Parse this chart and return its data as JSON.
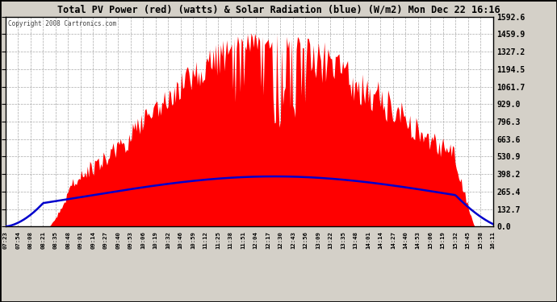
{
  "title": "Total PV Power (red) (watts) & Solar Radiation (blue) (W/m2) Mon Dec 22 16:16",
  "copyright": "Copyright 2008 Cartronics.com",
  "ymax": 1592.6,
  "yticks": [
    0.0,
    132.7,
    265.4,
    398.2,
    530.9,
    663.6,
    796.3,
    929.0,
    1061.7,
    1194.5,
    1327.2,
    1459.9,
    1592.6
  ],
  "ytick_labels": [
    "0.0",
    "132.7",
    "265.4",
    "398.2",
    "530.9",
    "663.6",
    "796.3",
    "929.0",
    "1061.7",
    "1194.5",
    "1327.2",
    "1459.9",
    "1592.6"
  ],
  "xtick_labels": [
    "07:23",
    "07:54",
    "08:08",
    "08:21",
    "08:35",
    "08:48",
    "09:01",
    "09:14",
    "09:27",
    "09:40",
    "09:53",
    "10:06",
    "10:19",
    "10:32",
    "10:46",
    "10:59",
    "11:12",
    "11:25",
    "11:38",
    "11:51",
    "12:04",
    "12:17",
    "12:30",
    "12:43",
    "12:56",
    "13:09",
    "13:22",
    "13:35",
    "13:48",
    "14:01",
    "14:14",
    "14:27",
    "14:40",
    "14:53",
    "15:06",
    "15:19",
    "15:32",
    "15:45",
    "15:58",
    "16:11"
  ],
  "plot_bg": "#ffffff",
  "fig_bg": "#d4d0c8",
  "red_color": "#ff0000",
  "blue_color": "#0000cc",
  "grid_color": "#aaaaaa",
  "title_color": "#000000",
  "border_color": "#000000"
}
